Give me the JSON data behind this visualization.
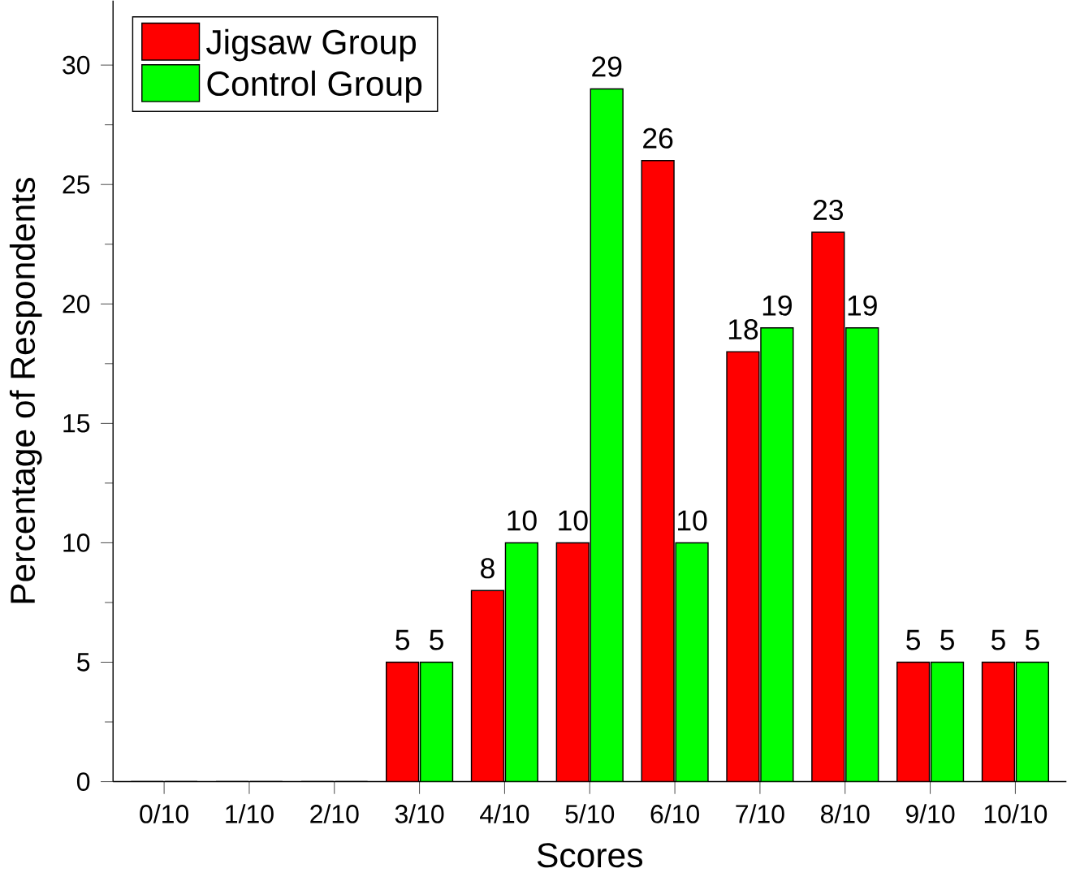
{
  "chart_data": {
    "type": "bar",
    "xlabel": "Scores",
    "ylabel": "Percentage of Respondents",
    "categories": [
      "0/10",
      "1/10",
      "2/10",
      "3/10",
      "4/10",
      "5/10",
      "6/10",
      "7/10",
      "8/10",
      "9/10",
      "10/10"
    ],
    "series": [
      {
        "name": "Jigsaw Group",
        "color": "#ff0000",
        "values": [
          0,
          0,
          0,
          5,
          8,
          10,
          26,
          18,
          23,
          5,
          5
        ],
        "value_labels": [
          null,
          null,
          null,
          "5",
          "8",
          "10",
          "26",
          "18",
          "23",
          "5",
          "5"
        ]
      },
      {
        "name": "Control Group",
        "color": "#00ff00",
        "values": [
          0,
          0,
          0,
          5,
          10,
          29,
          10,
          19,
          19,
          5,
          5
        ],
        "value_labels": [
          null,
          null,
          null,
          "5",
          "10",
          "29",
          "10",
          "19",
          "19",
          "5",
          "5"
        ]
      }
    ],
    "ylim": [
      0,
      32.7
    ],
    "yticks": [
      0,
      5,
      10,
      15,
      20,
      25,
      30
    ],
    "legend": "top left",
    "grid": false
  }
}
